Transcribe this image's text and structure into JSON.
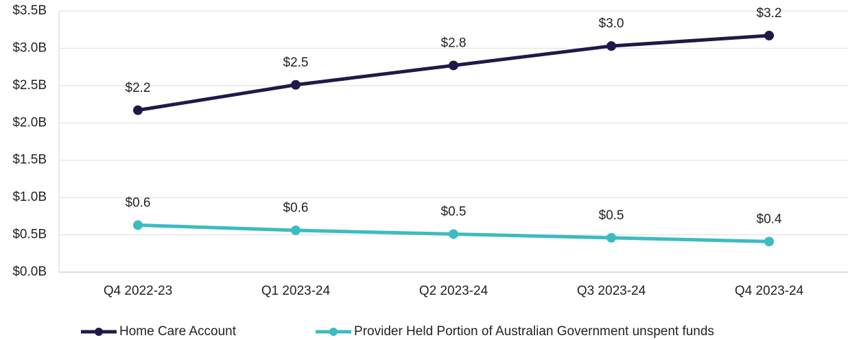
{
  "chart_data": {
    "type": "line",
    "categories": [
      "Q4 2022-23",
      "Q1 2023-24",
      "Q2 2023-24",
      "Q3 2023-24",
      "Q4 2023-24"
    ],
    "series": [
      {
        "name": "Home Care Account",
        "color": "#1e1a48",
        "values": [
          2.17,
          2.51,
          2.77,
          3.03,
          3.17
        ],
        "value_labels": [
          "$2.2",
          "$2.5",
          "$2.8",
          "$3.0",
          "$3.2"
        ]
      },
      {
        "name": "Provider Held Portion of Australian Government unspent funds",
        "color": "#3bbcc2",
        "values": [
          0.63,
          0.56,
          0.51,
          0.46,
          0.41
        ],
        "value_labels": [
          "$0.6",
          "$0.6",
          "$0.5",
          "$0.5",
          "$0.4"
        ]
      }
    ],
    "ylim": [
      0,
      3.5
    ],
    "yticks": [
      {
        "value": 0,
        "label": "$0.0B"
      },
      {
        "value": 0.5,
        "label": "$0.5B"
      },
      {
        "value": 1,
        "label": "$1.0B"
      },
      {
        "value": 1.5,
        "label": "$1.5B"
      },
      {
        "value": 2,
        "label": "$2.0B"
      },
      {
        "value": 2.5,
        "label": "$2.5B"
      },
      {
        "value": 3,
        "label": "$3.0B"
      },
      {
        "value": 3.5,
        "label": "$3.5B"
      }
    ],
    "grid": true,
    "legend": "bottom"
  }
}
